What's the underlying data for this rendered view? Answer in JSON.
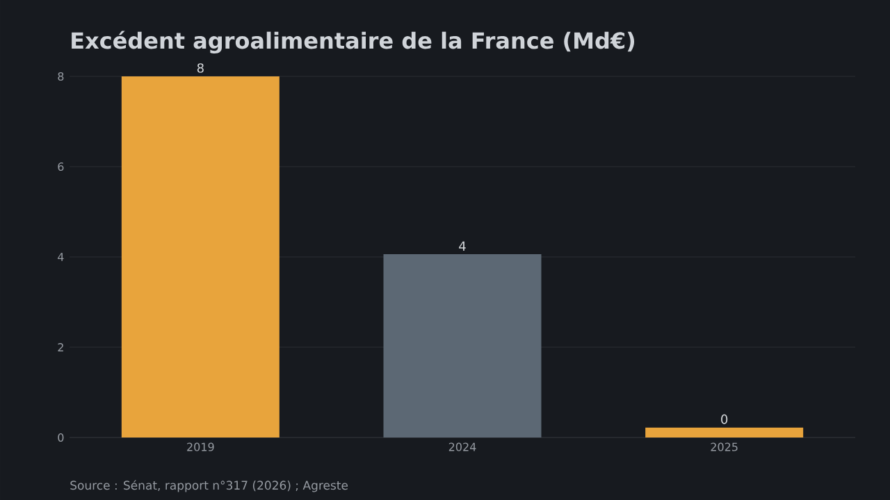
{
  "chart_data": {
    "type": "bar",
    "title": "Excédent agroalimentaire de la France (Md€)",
    "categories": [
      "2019",
      "2024",
      "2025"
    ],
    "values": [
      8.0,
      4.06,
      0.22
    ],
    "colors": [
      "#e8a43c",
      "#5c6874",
      "#e8a43c"
    ],
    "value_labels": [
      "8",
      "4",
      "0"
    ],
    "ylim": [
      0,
      8
    ],
    "yticks": [
      0,
      2,
      4,
      6,
      8
    ],
    "grid": "y",
    "annotations": [
      "Source : Sénat, rapport n°317 (2026) ; Agreste"
    ]
  }
}
